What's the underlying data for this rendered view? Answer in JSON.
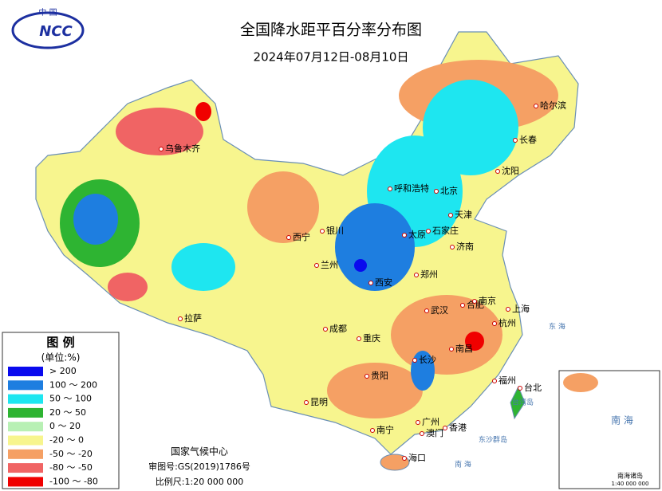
{
  "header": {
    "logo_top": "中 国",
    "logo": "NCC",
    "title": "全国降水距平百分率分布图",
    "subtitle": "2024年07月12日-08月10日"
  },
  "legend": {
    "title": "图 例",
    "unit": "(单位:%)",
    "items": [
      {
        "label": "> 200",
        "color": "#0a0aee"
      },
      {
        "label": "100 ～ 200",
        "color": "#1e7ee0"
      },
      {
        "label": "50 ～ 100",
        "color": "#1ee6f0"
      },
      {
        "label": "20 ～ 50",
        "color": "#2eb432"
      },
      {
        "label": "0 ～ 20",
        "color": "#b8f0b4"
      },
      {
        "label": "-20 ～ 0",
        "color": "#f7f58e"
      },
      {
        "label": "-50 ～ -20",
        "color": "#f5a064"
      },
      {
        "label": "-80 ～ -50",
        "color": "#f06464"
      },
      {
        "label": "-100 ～ -80",
        "color": "#f00000"
      }
    ]
  },
  "footer": {
    "org": "国家气候中心",
    "approval": "审图号:GS(2019)1786号",
    "scale": "比例尺:1:20 000 000"
  },
  "inset": {
    "title": "南海诸岛",
    "scale": "1:40 000 000",
    "sea": "南 海"
  },
  "cities": [
    "乌鲁木齐",
    "拉萨",
    "西宁",
    "兰州",
    "银川",
    "呼和浩特",
    "北京",
    "天津",
    "石家庄",
    "太原",
    "济南",
    "郑州",
    "西安",
    "成都",
    "重庆",
    "贵阳",
    "昆明",
    "南宁",
    "海口",
    "广州",
    "香港",
    "澳门",
    "长沙",
    "南昌",
    "福州",
    "台北",
    "武汉",
    "合肥",
    "南京",
    "上海",
    "杭州",
    "沈阳",
    "长春",
    "哈尔滨"
  ],
  "seas": [
    "东 海",
    "南 海",
    "台湾岛",
    "东沙群岛"
  ]
}
